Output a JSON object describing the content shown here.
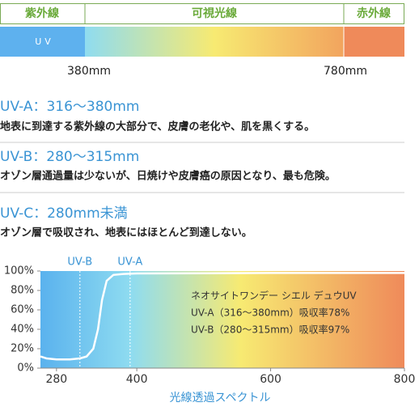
{
  "spectrum": {
    "bands": [
      "紫外線",
      "可視光線",
      "赤外線"
    ],
    "uv_label": "UV",
    "marks": [
      "380mm",
      "780mm"
    ]
  },
  "sections": [
    {
      "heading": "UV-A：316〜380mm",
      "text": "地表に到達する紫外線の大部分で、皮膚の老化や、肌を黒くする。"
    },
    {
      "heading": "UV-B：280〜315mm",
      "text": "オゾン層通過量は少ないが、日焼けや皮膚癌の原因となり、最も危険。"
    },
    {
      "heading": "UV-C：280mm未満",
      "text": "オゾン層で吸収され、地表にはほとんど到達しない。"
    }
  ],
  "chart_data": {
    "type": "line",
    "x": [
      256,
      265,
      280,
      300,
      315,
      325,
      335,
      342,
      348,
      355,
      365,
      380,
      400,
      600,
      800
    ],
    "values": [
      12,
      10,
      9,
      9,
      10,
      12,
      20,
      40,
      70,
      90,
      96,
      97,
      97.5,
      98,
      98
    ],
    "color": "#ffffff",
    "xlim": [
      256,
      800
    ],
    "ylim": [
      0,
      100
    ],
    "xticks": [
      280,
      400,
      600,
      800
    ],
    "yticks": [
      {
        "value": 0,
        "label": "0%"
      },
      {
        "value": 20,
        "label": "20%"
      },
      {
        "value": 40,
        "label": "40%"
      },
      {
        "value": 60,
        "label": "60%"
      },
      {
        "value": 80,
        "label": "80%"
      },
      {
        "value": 100,
        "label": "100%"
      }
    ],
    "markers": [
      {
        "label": "UV-B",
        "x": 315
      },
      {
        "label": "UV-A",
        "x": 390
      }
    ],
    "annotations": [
      "ネオサイトワンデー シエル デュウUV",
      "UV-A（316〜380mm）吸収率78%",
      "UV-B（280〜315mm）吸収率97%"
    ],
    "xlabel": "光線透過スペクトル"
  }
}
